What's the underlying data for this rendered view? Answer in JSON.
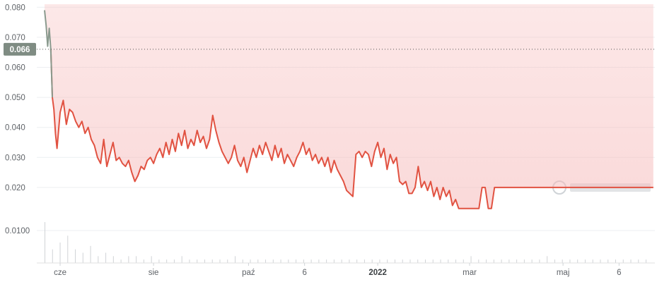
{
  "chart_data": {
    "type": "area",
    "y_ticks": [
      "0.080",
      "0.070",
      "0.060",
      "0.050",
      "0.040",
      "0.030",
      "0.020"
    ],
    "ylim": [
      0.012,
      0.081
    ],
    "volume_tick": "0.0100",
    "x_ticks": [
      {
        "label": "cze",
        "x": 10,
        "bold": false
      },
      {
        "label": "sie",
        "x": 70,
        "bold": false
      },
      {
        "label": "paź",
        "x": 131,
        "bold": false
      },
      {
        "label": "6",
        "x": 167,
        "bold": false
      },
      {
        "label": "2022",
        "x": 214,
        "bold": true
      },
      {
        "label": "mar",
        "x": 273,
        "bold": false
      },
      {
        "label": "maj",
        "x": 333,
        "bold": false
      },
      {
        "label": "6",
        "x": 369,
        "bold": false
      }
    ],
    "xlim": [
      -5,
      392
    ],
    "current_price_label": "0.066",
    "current_price": 0.066,
    "price_series": [
      {
        "x": 0,
        "y": 0.079
      },
      {
        "x": 1,
        "y": 0.074
      },
      {
        "x": 2,
        "y": 0.067
      },
      {
        "x": 3,
        "y": 0.073
      },
      {
        "x": 4,
        "y": 0.066
      },
      {
        "x": 5,
        "y": 0.05
      },
      {
        "x": 6,
        "y": 0.046
      },
      {
        "x": 7,
        "y": 0.038
      },
      {
        "x": 8,
        "y": 0.033
      },
      {
        "x": 10,
        "y": 0.045
      },
      {
        "x": 12,
        "y": 0.049
      },
      {
        "x": 14,
        "y": 0.041
      },
      {
        "x": 16,
        "y": 0.046
      },
      {
        "x": 18,
        "y": 0.045
      },
      {
        "x": 20,
        "y": 0.042
      },
      {
        "x": 22,
        "y": 0.04
      },
      {
        "x": 24,
        "y": 0.042
      },
      {
        "x": 26,
        "y": 0.038
      },
      {
        "x": 28,
        "y": 0.04
      },
      {
        "x": 30,
        "y": 0.036
      },
      {
        "x": 32,
        "y": 0.034
      },
      {
        "x": 34,
        "y": 0.03
      },
      {
        "x": 36,
        "y": 0.028
      },
      {
        "x": 38,
        "y": 0.036
      },
      {
        "x": 40,
        "y": 0.027
      },
      {
        "x": 42,
        "y": 0.031
      },
      {
        "x": 44,
        "y": 0.035
      },
      {
        "x": 46,
        "y": 0.029
      },
      {
        "x": 48,
        "y": 0.03
      },
      {
        "x": 50,
        "y": 0.028
      },
      {
        "x": 52,
        "y": 0.027
      },
      {
        "x": 54,
        "y": 0.029
      },
      {
        "x": 56,
        "y": 0.025
      },
      {
        "x": 58,
        "y": 0.022
      },
      {
        "x": 60,
        "y": 0.024
      },
      {
        "x": 62,
        "y": 0.027
      },
      {
        "x": 64,
        "y": 0.026
      },
      {
        "x": 66,
        "y": 0.029
      },
      {
        "x": 68,
        "y": 0.03
      },
      {
        "x": 70,
        "y": 0.028
      },
      {
        "x": 72,
        "y": 0.031
      },
      {
        "x": 74,
        "y": 0.033
      },
      {
        "x": 76,
        "y": 0.03
      },
      {
        "x": 78,
        "y": 0.035
      },
      {
        "x": 80,
        "y": 0.031
      },
      {
        "x": 82,
        "y": 0.036
      },
      {
        "x": 84,
        "y": 0.032
      },
      {
        "x": 86,
        "y": 0.038
      },
      {
        "x": 88,
        "y": 0.034
      },
      {
        "x": 90,
        "y": 0.039
      },
      {
        "x": 92,
        "y": 0.033
      },
      {
        "x": 94,
        "y": 0.036
      },
      {
        "x": 96,
        "y": 0.034
      },
      {
        "x": 98,
        "y": 0.039
      },
      {
        "x": 100,
        "y": 0.035
      },
      {
        "x": 102,
        "y": 0.037
      },
      {
        "x": 104,
        "y": 0.033
      },
      {
        "x": 106,
        "y": 0.036
      },
      {
        "x": 108,
        "y": 0.044
      },
      {
        "x": 110,
        "y": 0.039
      },
      {
        "x": 112,
        "y": 0.035
      },
      {
        "x": 114,
        "y": 0.032
      },
      {
        "x": 116,
        "y": 0.03
      },
      {
        "x": 118,
        "y": 0.028
      },
      {
        "x": 120,
        "y": 0.03
      },
      {
        "x": 122,
        "y": 0.034
      },
      {
        "x": 124,
        "y": 0.029
      },
      {
        "x": 126,
        "y": 0.027
      },
      {
        "x": 128,
        "y": 0.03
      },
      {
        "x": 130,
        "y": 0.025
      },
      {
        "x": 132,
        "y": 0.029
      },
      {
        "x": 134,
        "y": 0.033
      },
      {
        "x": 136,
        "y": 0.03
      },
      {
        "x": 138,
        "y": 0.034
      },
      {
        "x": 140,
        "y": 0.031
      },
      {
        "x": 142,
        "y": 0.035
      },
      {
        "x": 144,
        "y": 0.032
      },
      {
        "x": 146,
        "y": 0.029
      },
      {
        "x": 148,
        "y": 0.034
      },
      {
        "x": 150,
        "y": 0.03
      },
      {
        "x": 152,
        "y": 0.033
      },
      {
        "x": 154,
        "y": 0.028
      },
      {
        "x": 156,
        "y": 0.031
      },
      {
        "x": 158,
        "y": 0.029
      },
      {
        "x": 160,
        "y": 0.027
      },
      {
        "x": 162,
        "y": 0.03
      },
      {
        "x": 164,
        "y": 0.032
      },
      {
        "x": 166,
        "y": 0.035
      },
      {
        "x": 168,
        "y": 0.031
      },
      {
        "x": 170,
        "y": 0.033
      },
      {
        "x": 172,
        "y": 0.029
      },
      {
        "x": 174,
        "y": 0.031
      },
      {
        "x": 176,
        "y": 0.028
      },
      {
        "x": 178,
        "y": 0.03
      },
      {
        "x": 180,
        "y": 0.027
      },
      {
        "x": 182,
        "y": 0.03
      },
      {
        "x": 184,
        "y": 0.025
      },
      {
        "x": 186,
        "y": 0.029
      },
      {
        "x": 188,
        "y": 0.026
      },
      {
        "x": 190,
        "y": 0.024
      },
      {
        "x": 192,
        "y": 0.022
      },
      {
        "x": 194,
        "y": 0.019
      },
      {
        "x": 196,
        "y": 0.018
      },
      {
        "x": 198,
        "y": 0.017
      },
      {
        "x": 200,
        "y": 0.031
      },
      {
        "x": 202,
        "y": 0.032
      },
      {
        "x": 204,
        "y": 0.03
      },
      {
        "x": 206,
        "y": 0.032
      },
      {
        "x": 208,
        "y": 0.031
      },
      {
        "x": 210,
        "y": 0.027
      },
      {
        "x": 212,
        "y": 0.032
      },
      {
        "x": 214,
        "y": 0.035
      },
      {
        "x": 216,
        "y": 0.03
      },
      {
        "x": 218,
        "y": 0.033
      },
      {
        "x": 220,
        "y": 0.026
      },
      {
        "x": 222,
        "y": 0.031
      },
      {
        "x": 224,
        "y": 0.028
      },
      {
        "x": 226,
        "y": 0.03
      },
      {
        "x": 228,
        "y": 0.022
      },
      {
        "x": 230,
        "y": 0.021
      },
      {
        "x": 232,
        "y": 0.022
      },
      {
        "x": 234,
        "y": 0.018
      },
      {
        "x": 236,
        "y": 0.018
      },
      {
        "x": 238,
        "y": 0.02
      },
      {
        "x": 240,
        "y": 0.027
      },
      {
        "x": 242,
        "y": 0.02
      },
      {
        "x": 244,
        "y": 0.022
      },
      {
        "x": 246,
        "y": 0.019
      },
      {
        "x": 248,
        "y": 0.022
      },
      {
        "x": 250,
        "y": 0.017
      },
      {
        "x": 252,
        "y": 0.02
      },
      {
        "x": 254,
        "y": 0.016
      },
      {
        "x": 256,
        "y": 0.02
      },
      {
        "x": 258,
        "y": 0.017
      },
      {
        "x": 260,
        "y": 0.019
      },
      {
        "x": 262,
        "y": 0.014
      },
      {
        "x": 264,
        "y": 0.016
      },
      {
        "x": 266,
        "y": 0.013
      },
      {
        "x": 270,
        "y": 0.013
      },
      {
        "x": 275,
        "y": 0.013
      },
      {
        "x": 279,
        "y": 0.013
      },
      {
        "x": 281,
        "y": 0.02
      },
      {
        "x": 283,
        "y": 0.02
      },
      {
        "x": 285,
        "y": 0.013
      },
      {
        "x": 287,
        "y": 0.013
      },
      {
        "x": 289,
        "y": 0.02
      },
      {
        "x": 300,
        "y": 0.02
      },
      {
        "x": 320,
        "y": 0.02
      },
      {
        "x": 340,
        "y": 0.02
      },
      {
        "x": 360,
        "y": 0.02
      },
      {
        "x": 391,
        "y": 0.02
      }
    ],
    "volume_series": [
      0.012,
      0.004,
      0.006,
      0.008,
      0.004,
      0.003,
      0.005,
      0.002,
      0.003,
      0.002,
      0.001,
      0.002,
      0.002,
      0.001,
      0.002,
      0.001,
      0.001,
      0.001,
      0.002,
      0.001,
      0.001,
      0.001,
      0.001,
      0.001,
      0.001,
      0.002,
      0.001,
      0.001,
      0.001,
      0.001,
      0.001,
      0.001,
      0.001,
      0.001,
      0.001,
      0.001,
      0.001,
      0.001,
      0.001,
      0.001,
      0.001,
      0.001,
      0.001,
      0.001,
      0.001,
      0.001,
      0.001,
      0.001,
      0.001,
      0.001,
      0.001,
      0.001,
      0.001,
      0.001,
      0.001,
      0.001,
      0.002,
      0.001,
      0.001,
      0.001,
      0.001,
      0.001,
      0.001,
      0.001,
      0.001,
      0.001,
      0.002,
      0.001,
      0.001,
      0.001,
      0.001,
      0.001,
      0.001,
      0.001,
      0.001,
      0.001,
      0.001,
      0.001,
      0.001,
      0.001
    ],
    "grid": true,
    "colors": {
      "line": "#e15241",
      "line_early": "#8a9a8e",
      "area_top": "#f8c9c9",
      "badge": "#7f8c83",
      "grid": "#eceff1",
      "volume": "#d0d3d6"
    }
  },
  "watermark": {
    "icon": "coingecko-logo-icon"
  }
}
